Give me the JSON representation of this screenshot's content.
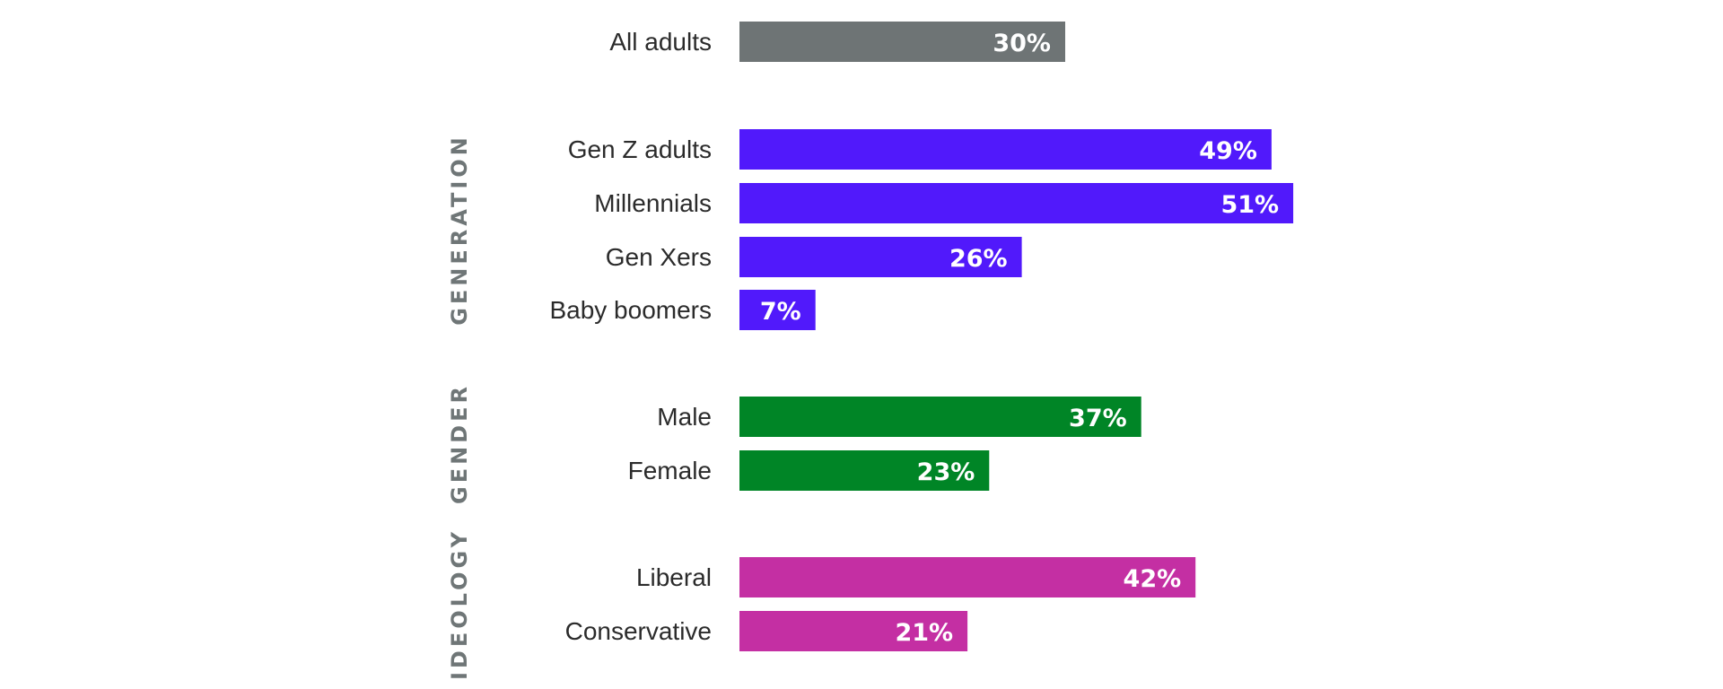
{
  "chart_data": {
    "type": "bar",
    "orientation": "horizontal",
    "unit": "%",
    "xlim": [
      0,
      60
    ],
    "grid": false,
    "legend": "none",
    "colors": {
      "all": "#6e7475",
      "generation": "#5119fb",
      "gender": "#008526",
      "ideology": "#c42fa3"
    },
    "groups": [
      {
        "key": "all",
        "label": "",
        "rows": [
          {
            "category": "All adults",
            "value": 30,
            "value_label": "30%"
          }
        ]
      },
      {
        "key": "generation",
        "label": "GENERATION",
        "rows": [
          {
            "category": "Gen Z adults",
            "value": 49,
            "value_label": "49%"
          },
          {
            "category": "Millennials",
            "value": 51,
            "value_label": "51%"
          },
          {
            "category": "Gen Xers",
            "value": 26,
            "value_label": "26%"
          },
          {
            "category": "Baby boomers",
            "value": 7,
            "value_label": "7%"
          }
        ]
      },
      {
        "key": "gender",
        "label": "GENDER",
        "rows": [
          {
            "category": "Male",
            "value": 37,
            "value_label": "37%"
          },
          {
            "category": "Female",
            "value": 23,
            "value_label": "23%"
          }
        ]
      },
      {
        "key": "ideology",
        "label": "IDEOLOGY",
        "rows": [
          {
            "category": "Liberal",
            "value": 42,
            "value_label": "42%"
          },
          {
            "category": "Conservative",
            "value": 21,
            "value_label": "21%"
          }
        ]
      }
    ]
  }
}
